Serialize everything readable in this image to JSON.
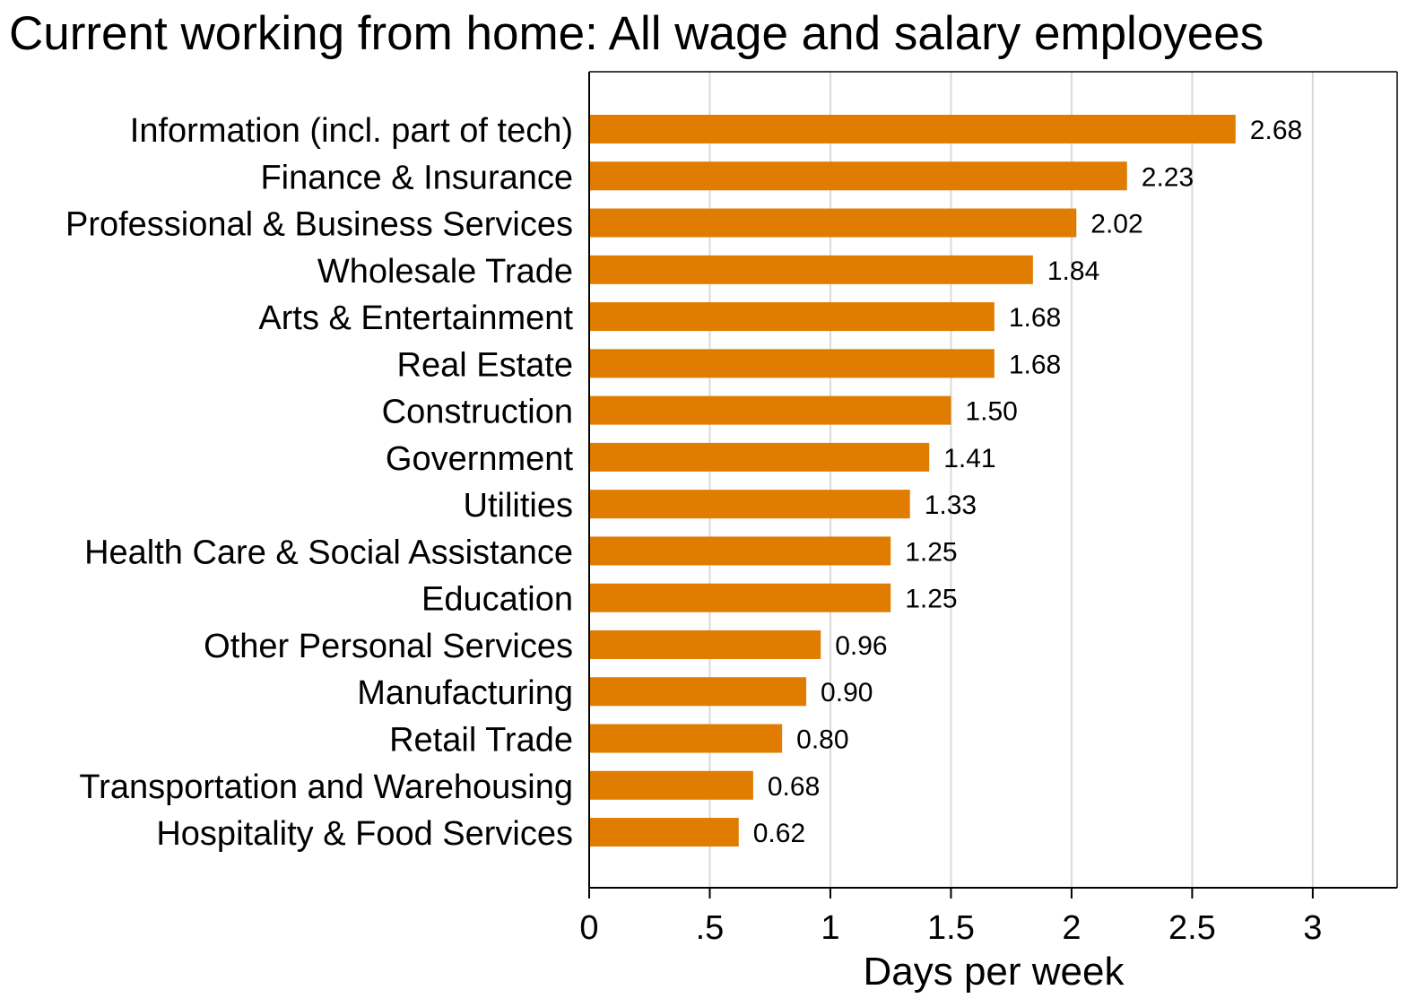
{
  "chart_data": {
    "type": "bar",
    "orientation": "horizontal",
    "title": "Current working from home: All wage and salary employees",
    "xlabel": "Days per week",
    "ylabel": "",
    "xlim": [
      0,
      3.35
    ],
    "ticks": [
      0,
      0.5,
      1,
      1.5,
      2,
      2.5,
      3
    ],
    "tick_labels": [
      "0",
      ".5",
      "1",
      "1.5",
      "2",
      "2.5",
      "3"
    ],
    "grid": true,
    "bar_color": "#E07C00",
    "grid_color": "#D9D9D9",
    "categories": [
      "Information (incl. part of tech)",
      "Finance & Insurance",
      "Professional & Business Services",
      "Wholesale Trade",
      "Arts & Entertainment",
      "Real Estate",
      "Construction",
      "Government",
      "Utilities",
      "Health Care & Social Assistance",
      "Education",
      "Other Personal Services",
      "Manufacturing",
      "Retail Trade",
      "Transportation and Warehousing",
      "Hospitality & Food Services"
    ],
    "values": [
      2.68,
      2.23,
      2.02,
      1.84,
      1.68,
      1.68,
      1.5,
      1.41,
      1.33,
      1.25,
      1.25,
      0.96,
      0.9,
      0.8,
      0.68,
      0.62
    ],
    "value_labels": [
      "2.68",
      "2.23",
      "2.02",
      "1.84",
      "1.68",
      "1.68",
      "1.50",
      "1.41",
      "1.33",
      "1.25",
      "1.25",
      "0.96",
      "0.90",
      "0.80",
      "0.68",
      "0.62"
    ]
  }
}
